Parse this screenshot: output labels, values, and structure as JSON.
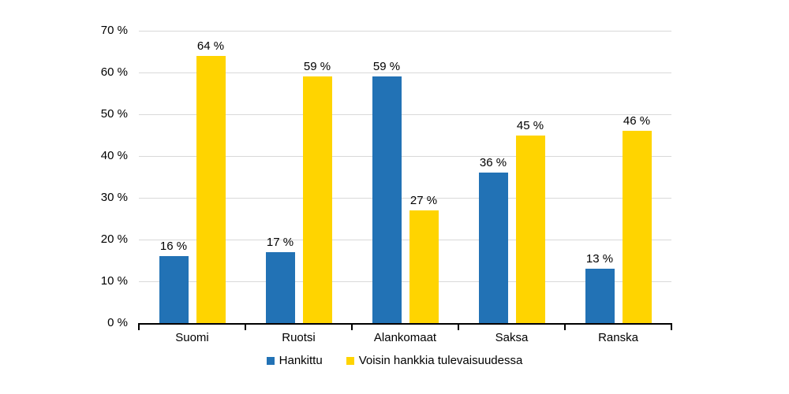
{
  "chart_data": {
    "type": "bar",
    "title": "",
    "xlabel": "",
    "ylabel": "",
    "categories": [
      "Suomi",
      "Ruotsi",
      "Alankomaat",
      "Saksa",
      "Ranska"
    ],
    "series": [
      {
        "name": "Hankittu",
        "color": "#2272B5",
        "values": [
          16,
          17,
          59,
          36,
          13
        ],
        "labels": [
          "16 %",
          "17 %",
          "59 %",
          "36 %",
          "13 %"
        ]
      },
      {
        "name": "Voisin hankkia tulevaisuudessa",
        "color": "#FFD400",
        "values": [
          64,
          59,
          27,
          45,
          46
        ],
        "labels": [
          "64 %",
          "59 %",
          "27 %",
          "45 %",
          "46 %"
        ]
      }
    ],
    "ylim": [
      0,
      70
    ],
    "ytick_values": [
      0,
      10,
      20,
      30,
      40,
      50,
      60,
      70
    ],
    "ytick_labels": [
      "0 %",
      "10 %",
      "20 %",
      "30 %",
      "40 %",
      "50 %",
      "60 %",
      "70 %"
    ],
    "grid": true,
    "legend_position": "bottom",
    "colors": {
      "gridline": "#D9D9D9",
      "axis": "#000000",
      "text": "#000000",
      "background": "#FFFFFF"
    }
  }
}
